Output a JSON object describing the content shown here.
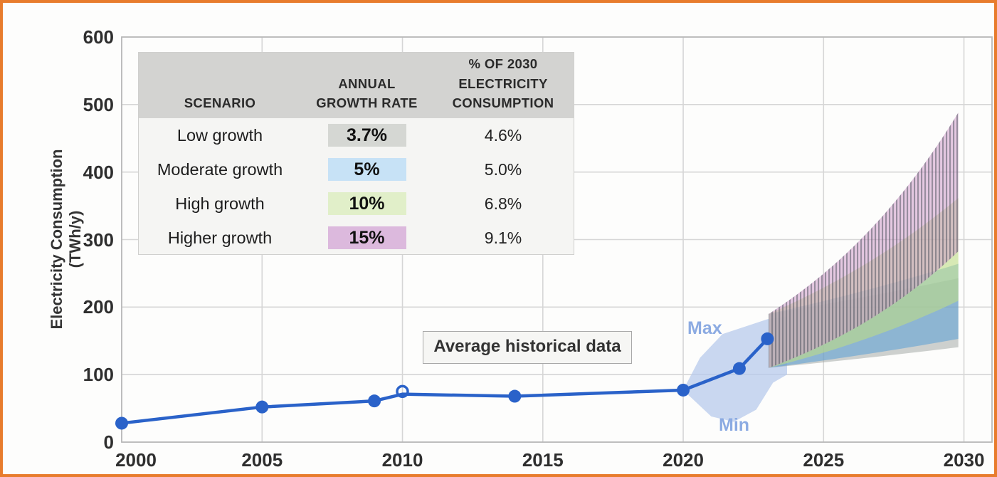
{
  "frame": {
    "border_color": "#e87c2d",
    "background": "#fdfdfc"
  },
  "axis": {
    "y_title": "Electricity Consumption (TWh/y)",
    "y_ticks": [
      0,
      100,
      200,
      300,
      400,
      500,
      600
    ],
    "x_ticks": [
      2000,
      2005,
      2010,
      2015,
      2020,
      2025,
      2030
    ]
  },
  "table": {
    "header": {
      "scenario": "SCENARIO",
      "rate": "ANNUAL\nGROWTH RATE",
      "share": "% OF 2030\nELECTRICITY\nCONSUMPTION"
    },
    "rows": [
      {
        "scenario": "Low growth",
        "rate": "3.7%",
        "rate_style": "background:#d5d7d3",
        "share": "4.6%"
      },
      {
        "scenario": "Moderate growth",
        "rate": "5%",
        "rate_style": "background:#c7e2f6",
        "share": "5.0%"
      },
      {
        "scenario": "High growth",
        "rate": "10%",
        "rate_style": "background:#e1efc9",
        "share": "6.8%"
      },
      {
        "scenario": "Higher growth",
        "rate": "15%",
        "rate_style": "background:#dcb9dd",
        "share": "9.1%"
      }
    ]
  },
  "annotations": {
    "avg_label": "Average historical data",
    "max_label": "Max",
    "min_label": "Min"
  },
  "chart_data": {
    "type": "line",
    "title": "",
    "xlabel": "",
    "ylabel": "Electricity Consumption (TWh/y)",
    "xlim": [
      2000,
      2031
    ],
    "ylim": [
      0,
      600
    ],
    "grid": true,
    "x_ticks": [
      2000,
      2005,
      2010,
      2015,
      2020,
      2025,
      2030
    ],
    "y_ticks": [
      0,
      100,
      200,
      300,
      400,
      500,
      600
    ],
    "historical_series": {
      "name": "Average historical data",
      "line_points": [
        [
          2000,
          28
        ],
        [
          2005,
          52
        ],
        [
          2009,
          61
        ],
        [
          2010,
          71
        ],
        [
          2014,
          68
        ],
        [
          2020,
          77
        ],
        [
          2022,
          109
        ],
        [
          2023,
          153
        ]
      ],
      "marker_points": [
        [
          2000,
          28
        ],
        [
          2005,
          52
        ],
        [
          2009,
          61
        ],
        [
          2014,
          68
        ],
        [
          2020,
          77
        ],
        [
          2022,
          109
        ],
        [
          2023,
          153
        ]
      ],
      "open_marker": [
        2010,
        75
      ]
    },
    "uncertainty_band": {
      "label_max": "Max",
      "label_min": "Min",
      "polygon": [
        [
          2020,
          77
        ],
        [
          2020.6,
          125
        ],
        [
          2021.4,
          160
        ],
        [
          2023,
          182
        ],
        [
          2023.7,
          186
        ],
        [
          2023.7,
          100
        ],
        [
          2023.2,
          88
        ],
        [
          2022.6,
          48
        ],
        [
          2021.8,
          30
        ],
        [
          2021,
          38
        ]
      ]
    },
    "fan": {
      "start_year": 2023.05,
      "end_year": 2030,
      "start_min": 110,
      "start_max": 190
    },
    "scenarios": [
      {
        "name": "Low growth",
        "annual_growth_rate_pct": 3.7,
        "share_of_2030_consumption_pct": 4.6,
        "color": "#9ea4a0",
        "opacity": 0.5
      },
      {
        "name": "Moderate growth",
        "annual_growth_rate_pct": 5.0,
        "share_of_2030_consumption_pct": 5.0,
        "color": "#599fd6",
        "opacity": 0.55
      },
      {
        "name": "High growth",
        "annual_growth_rate_pct": 10.0,
        "share_of_2030_consumption_pct": 6.8,
        "color": "#bedc86",
        "opacity": 0.6
      },
      {
        "name": "Higher growth",
        "annual_growth_rate_pct": 15.0,
        "share_of_2030_consumption_pct": 9.1,
        "color": "#cf9ccb",
        "opacity": 0.55,
        "hatched": true
      }
    ],
    "colors": {
      "line": "#2a62c9",
      "grid": "#d6d6d6",
      "border": "#b9b9b9",
      "uncertainty_fill": "#b7c9ec",
      "hatch": "#4a505c"
    }
  }
}
